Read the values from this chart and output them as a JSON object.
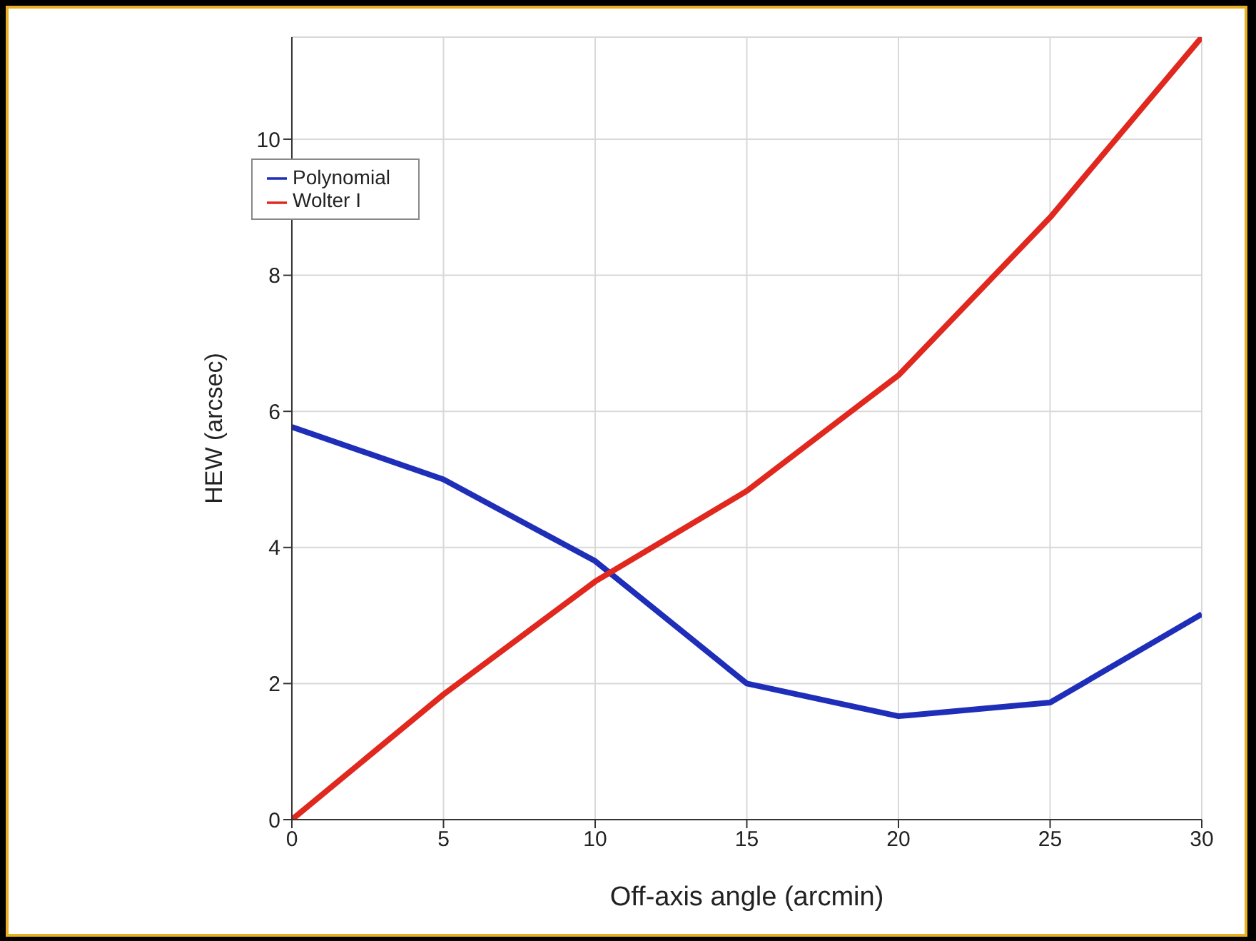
{
  "chart_data": {
    "type": "line",
    "xlabel": "Off-axis angle (arcmin)",
    "ylabel": "HEW (arcsec)",
    "x": [
      0,
      5,
      10,
      15,
      20,
      25,
      30
    ],
    "series": [
      {
        "name": "Polynomial",
        "color": "#1f2eb8",
        "values": [
          5.77,
          5.0,
          3.8,
          2.0,
          1.52,
          1.72,
          3.02
        ]
      },
      {
        "name": "Wolter I",
        "color": "#e0281e",
        "values": [
          0,
          1.84,
          3.5,
          4.83,
          6.53,
          8.85,
          11.5
        ]
      }
    ],
    "xlim": [
      0,
      30
    ],
    "xticks": [
      0,
      5,
      10,
      15,
      20,
      25,
      30
    ],
    "ylim": [
      0,
      11.5
    ],
    "yticks": [
      0,
      2,
      4,
      6,
      8,
      10
    ],
    "grid": true,
    "legend": "top left",
    "marker": "none",
    "line_style": "solid"
  }
}
